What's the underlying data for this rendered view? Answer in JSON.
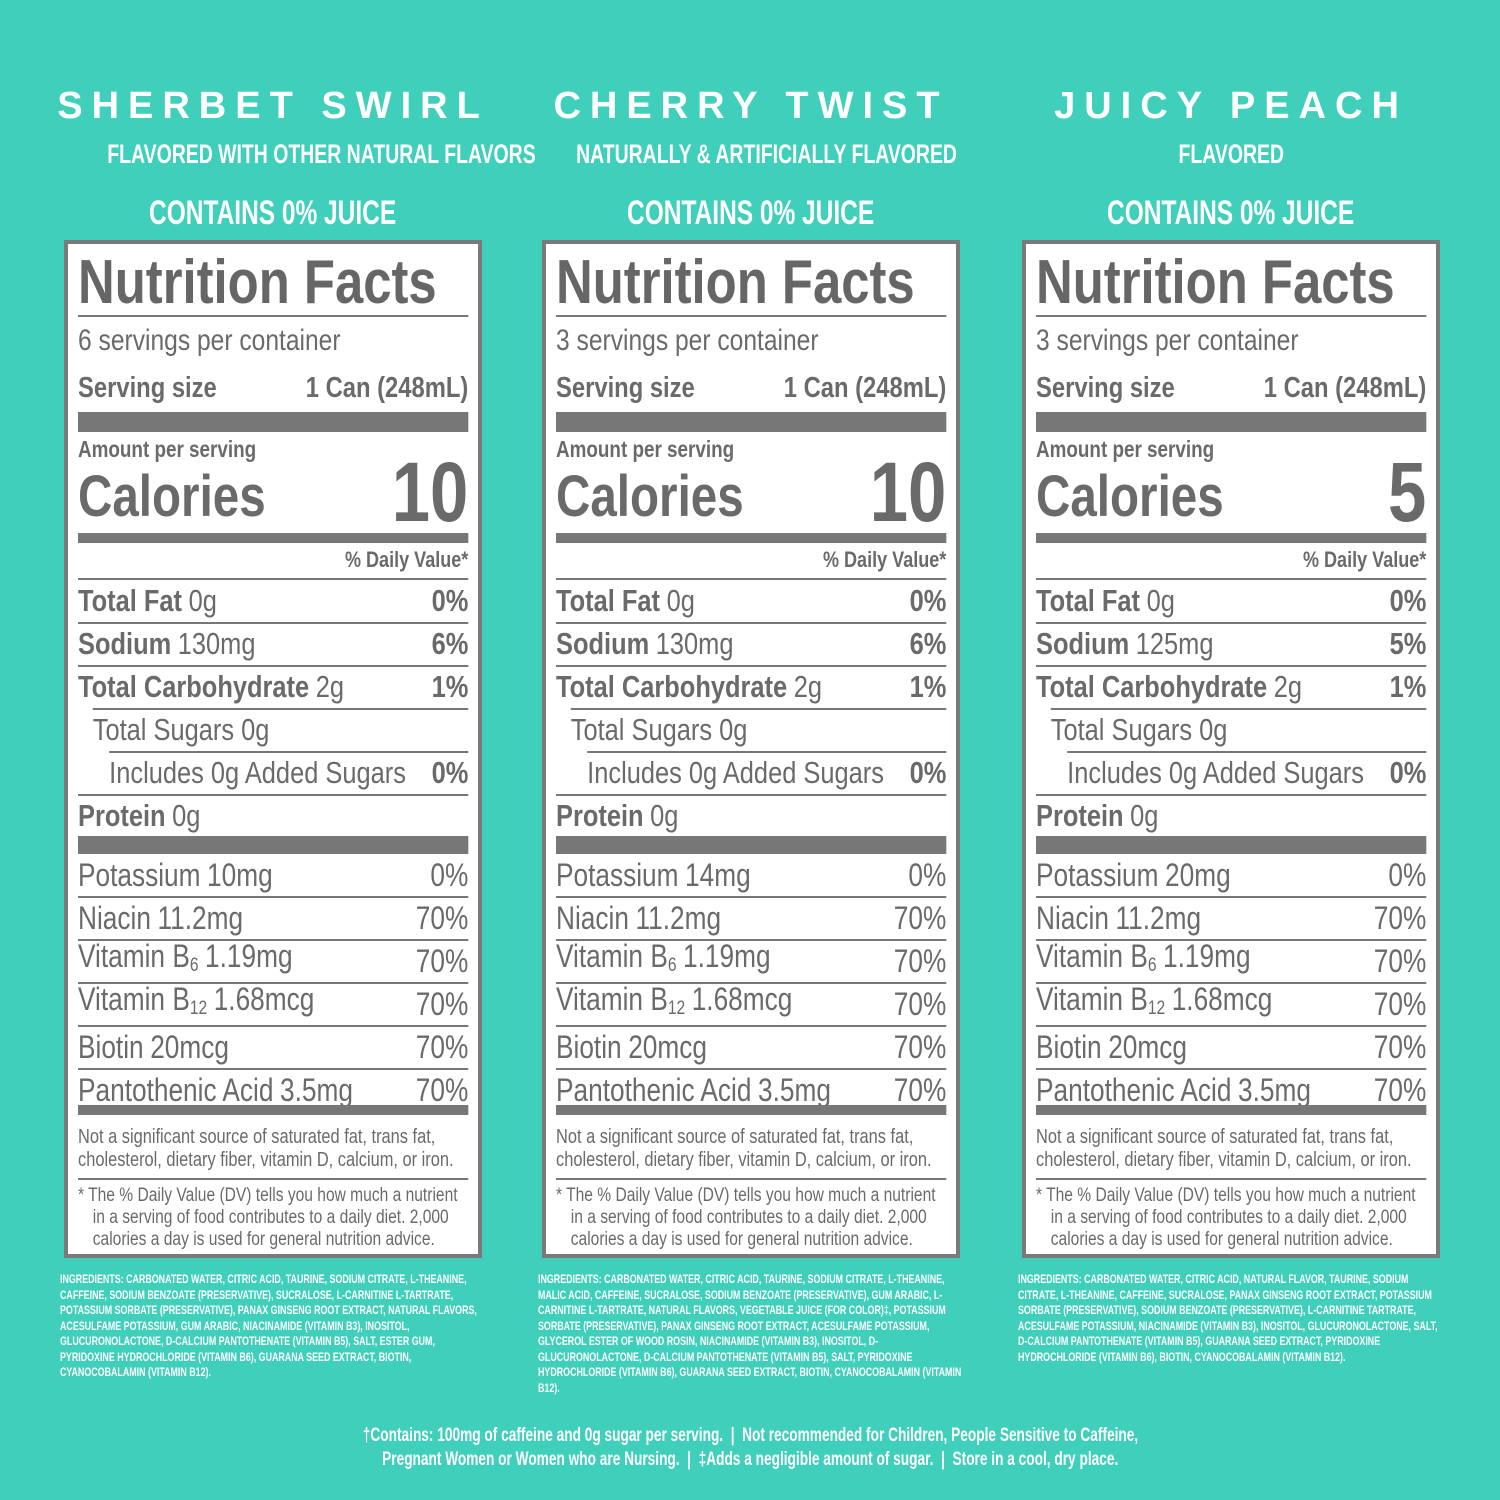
{
  "panels": [
    {
      "name": "SHERBET SWIRL",
      "flavor": "FLAVORED WITH OTHER NATURAL FLAVORS",
      "juice": "CONTAINS 0% JUICE",
      "label": {
        "title": "Nutrition Facts",
        "servings": "6 servings per container",
        "serving_size_label": "Serving size",
        "serving_size": "1 Can (248mL)",
        "amount_per_serving": "Amount per serving",
        "calories_label": "Calories",
        "calories": 10,
        "daily_value_header": "% Daily Value*",
        "nutrients": [
          {
            "name": "Total Fat",
            "amount": "0g",
            "dv": "0%"
          },
          {
            "name": "Sodium",
            "amount": "130mg",
            "dv": "6%"
          },
          {
            "name": "Total Carbohydrate",
            "amount": "2g",
            "dv": "1%"
          },
          {
            "text": "Total Sugars 0g"
          },
          {
            "text": "Includes 0g Added Sugars",
            "dv": "0%"
          },
          {
            "name": "Protein",
            "amount": "0g"
          }
        ],
        "vitamins": [
          {
            "name": "Potassium",
            "amount": "10mg",
            "dv": "0%"
          },
          {
            "name": "Niacin",
            "amount": "11.2mg",
            "dv": "70%"
          },
          {
            "name": "Vitamin B",
            "sub": "6",
            "amount": "1.19mg",
            "dv": "70%"
          },
          {
            "name": "Vitamin B",
            "sub": "12",
            "amount": "1.68mcg",
            "dv": "70%"
          },
          {
            "name": "Biotin",
            "amount": "20mcg",
            "dv": "70%"
          },
          {
            "name": "Pantothenic Acid",
            "amount": "3.5mg",
            "dv": "70%"
          }
        ],
        "note": "Not a significant source of saturated fat, trans fat, cholesterol, dietary fiber, vitamin D, calcium, or iron.",
        "footnote": "* The % Daily Value (DV) tells you how much a nutrient in a serving of food contributes to a daily diet. 2,000 calories a day is used for general nutrition advice."
      },
      "ingredients": "INGREDIENTS: CARBONATED WATER, CITRIC ACID, TAURINE, SODIUM CITRATE, L-THEANINE, CAFFEINE, SODIUM BENZOATE (PRESERVATIVE), SUCRALOSE, L-CARNITINE L-TARTRATE, POTASSIUM SORBATE (PRESERVATIVE), PANAX GINSENG ROOT EXTRACT, NATURAL FLAVORS, ACESULFAME POTASSIUM, GUM ARABIC, NIACINAMIDE (VITAMIN B3), INOSITOL, GLUCURONOLACTONE, D-CALCIUM PANTOTHENATE (VITAMIN B5), SALT, ESTER GUM, PYRIDOXINE HYDROCHLORIDE (VITAMIN B6), GUARANA SEED EXTRACT, BIOTIN, CYANOCOBALAMIN (VITAMIN B12)."
    },
    {
      "name": "CHERRY TWIST",
      "flavor": "NATURALLY & ARTIFICIALLY FLAVORED",
      "juice": "CONTAINS 0% JUICE",
      "label": {
        "title": "Nutrition Facts",
        "servings": "3 servings per container",
        "serving_size_label": "Serving size",
        "serving_size": "1 Can (248mL)",
        "amount_per_serving": "Amount per serving",
        "calories_label": "Calories",
        "calories": 10,
        "daily_value_header": "% Daily Value*",
        "nutrients": [
          {
            "name": "Total Fat",
            "amount": "0g",
            "dv": "0%"
          },
          {
            "name": "Sodium",
            "amount": "130mg",
            "dv": "6%"
          },
          {
            "name": "Total Carbohydrate",
            "amount": "2g",
            "dv": "1%"
          },
          {
            "text": "Total Sugars 0g"
          },
          {
            "text": "Includes 0g Added Sugars",
            "dv": "0%"
          },
          {
            "name": "Protein",
            "amount": "0g"
          }
        ],
        "vitamins": [
          {
            "name": "Potassium",
            "amount": "14mg",
            "dv": "0%"
          },
          {
            "name": "Niacin",
            "amount": "11.2mg",
            "dv": "70%"
          },
          {
            "name": "Vitamin B",
            "sub": "6",
            "amount": "1.19mg",
            "dv": "70%"
          },
          {
            "name": "Vitamin B",
            "sub": "12",
            "amount": "1.68mcg",
            "dv": "70%"
          },
          {
            "name": "Biotin",
            "amount": "20mcg",
            "dv": "70%"
          },
          {
            "name": "Pantothenic Acid",
            "amount": "3.5mg",
            "dv": "70%"
          }
        ],
        "note": "Not a significant source of saturated fat, trans fat, cholesterol, dietary fiber, vitamin D, calcium, or iron.",
        "footnote": "* The % Daily Value (DV) tells you how much a nutrient in a serving of food contributes to a daily diet. 2,000 calories a day is used for general nutrition advice."
      },
      "ingredients": "INGREDIENTS: CARBONATED WATER, CITRIC ACID, TAURINE, SODIUM CITRATE, L-THEANINE, MALIC ACID, CAFFEINE, SUCRALOSE, SODIUM BENZOATE (PRESERVATIVE), GUM ARABIC, L-CARNITINE L-TARTRATE, NATURAL FLAVORS, VEGETABLE JUICE (FOR COLOR)‡, POTASSIUM SORBATE (PRESERVATIVE), PANAX GINSENG ROOT EXTRACT, ACESULFAME POTASSIUM, GLYCEROL ESTER OF WOOD ROSIN, NIACINAMIDE (VITAMIN B3), INOSITOL, D-GLUCURONOLACTONE, D-CALCIUM PANTOTHENATE (VITAMIN B5), SALT, PYRIDOXINE HYDROCHLORIDE (VITAMIN B6), GUARANA SEED EXTRACT, BIOTIN, CYANOCOBALAMIN (VITAMIN B12)."
    },
    {
      "name": "JUICY PEACH",
      "flavor": "FLAVORED",
      "juice": "CONTAINS 0% JUICE",
      "label": {
        "title": "Nutrition Facts",
        "servings": "3 servings per container",
        "serving_size_label": "Serving size",
        "serving_size": "1 Can (248mL)",
        "amount_per_serving": "Amount per serving",
        "calories_label": "Calories",
        "calories": 5,
        "daily_value_header": "% Daily Value*",
        "nutrients": [
          {
            "name": "Total Fat",
            "amount": "0g",
            "dv": "0%"
          },
          {
            "name": "Sodium",
            "amount": "125mg",
            "dv": "5%"
          },
          {
            "name": "Total Carbohydrate",
            "amount": "2g",
            "dv": "1%"
          },
          {
            "text": "Total Sugars 0g"
          },
          {
            "text": "Includes 0g Added Sugars",
            "dv": "0%"
          },
          {
            "name": "Protein",
            "amount": "0g"
          }
        ],
        "vitamins": [
          {
            "name": "Potassium",
            "amount": "20mg",
            "dv": "0%"
          },
          {
            "name": "Niacin",
            "amount": "11.2mg",
            "dv": "70%"
          },
          {
            "name": "Vitamin B",
            "sub": "6",
            "amount": "1.19mg",
            "dv": "70%"
          },
          {
            "name": "Vitamin B",
            "sub": "12",
            "amount": "1.68mcg",
            "dv": "70%"
          },
          {
            "name": "Biotin",
            "amount": "20mcg",
            "dv": "70%"
          },
          {
            "name": "Pantothenic Acid",
            "amount": "3.5mg",
            "dv": "70%"
          }
        ],
        "note": "Not a significant source of saturated fat, trans fat, cholesterol, dietary fiber, vitamin D, calcium, or iron.",
        "footnote": "* The % Daily Value (DV) tells you how much a nutrient in a serving of food contributes to a daily diet. 2,000 calories a day is used for general nutrition advice."
      },
      "ingredients": "INGREDIENTS: CARBONATED WATER, CITRIC ACID, NATURAL FLAVOR, TAURINE, SODIUM CITRATE, L-THEANINE, CAFFEINE, SUCRALOSE, PANAX GINSENG ROOT EXTRACT, POTASSIUM SORBATE (PRESERVATIVE), SODIUM BENZOATE (PRESERVATIVE), L-CARNITINE TARTRATE, ACESULFAME POTASSIUM, NIACINAMIDE (VITAMIN B3), INOSITOL, GLUCURONOLACTONE, SALT, D-CALCIUM PANTOTHENATE (VITAMIN B5), GUARANA SEED EXTRACT, PYRIDOXINE HYDROCHLORIDE (VITAMIN B6), BIOTIN, CYANOCOBALAMIN (VITAMIN B12)."
    }
  ],
  "footer": [
    "†Contains: 100mg of caffeine and 0g sugar per serving.  |  Not recommended for Children, People Sensitive to Caffeine,",
    "Pregnant Women or Women who are Nursing.  |  ‡Adds a negligible amount of sugar.  |  Store in a cool, dry place."
  ]
}
